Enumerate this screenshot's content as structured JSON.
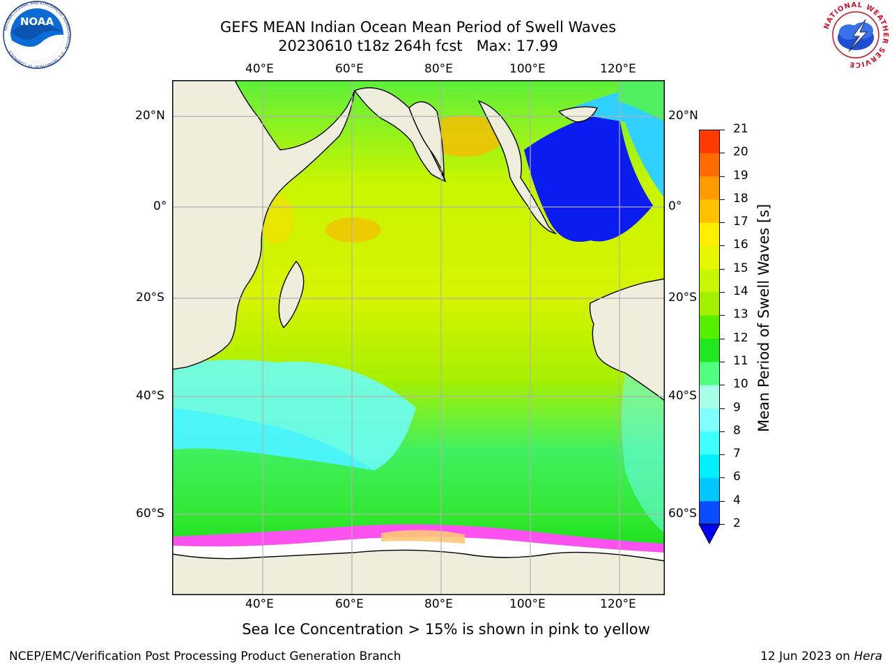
{
  "title": {
    "line1": "GEFS MEAN Indian Ocean Mean Period of Swell Waves",
    "line2": "20230610 t18z 264h fcst   Max: 17.99"
  },
  "logos": {
    "left": {
      "text": "NOAA",
      "ring": "NATIONAL OCEANIC AND ATMOSPHERIC ADMINISTRATION · U.S. DEPARTMENT OF COMMERCE"
    },
    "right": {
      "ring": "NATIONAL WEATHER SERVICE"
    }
  },
  "map": {
    "lon_labels": [
      "40°E",
      "60°E",
      "80°E",
      "100°E",
      "120°E"
    ],
    "lat_labels": [
      "20°N",
      "0°",
      "20°S",
      "40°S",
      "60°S"
    ],
    "colors": {
      "land": "#efeddb",
      "coast": "#000000",
      "grid": "#b0b0b0"
    }
  },
  "colorbar": {
    "label": "Mean Period of Swell Waves [s]",
    "ticks": [
      "2",
      "4",
      "6",
      "7",
      "8",
      "9",
      "10",
      "11",
      "12",
      "13",
      "14",
      "15",
      "16",
      "17",
      "18",
      "19",
      "20",
      "21"
    ],
    "colors": [
      "#0a4cff",
      "#00c8ff",
      "#00f0ff",
      "#40ffff",
      "#80ffff",
      "#a6ffe6",
      "#50ff80",
      "#20e820",
      "#55f000",
      "#a0f000",
      "#c8f500",
      "#e6f500",
      "#ffee00",
      "#ffc000",
      "#ff9a00",
      "#ff6a00",
      "#ff3a00",
      "#ff0000"
    ],
    "under_color": "#0000ff"
  },
  "notes": {
    "ice": "Sea Ice Concentration > 15% is shown in pink to yellow",
    "producer": "NCEP/EMC/Verification Post Processing Product Generation Branch",
    "date": "12 Jun 2023 on ",
    "host": "Hera"
  }
}
